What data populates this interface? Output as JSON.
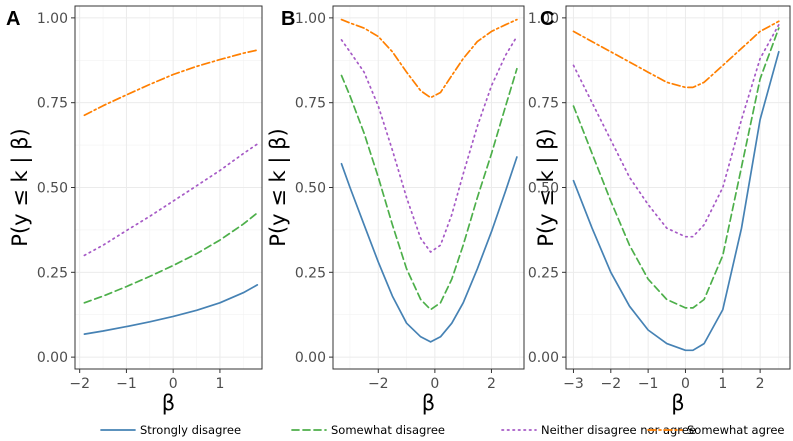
{
  "legend": [
    {
      "label": "Strongly disagree",
      "color": "#4682B4",
      "dash": "solid"
    },
    {
      "label": "Somewhat disagree",
      "color": "#4DAF4A",
      "dash": "dashed"
    },
    {
      "label": "Neither disagree nor agree",
      "color": "#A65AC6",
      "dash": "dotted"
    },
    {
      "label": "Somewhat agree",
      "color": "#FF7F00",
      "dash": "dashdot"
    }
  ],
  "chart_data": [
    {
      "type": "line",
      "panel": "A",
      "xlabel": "β",
      "ylabel": "P(y ≤ k | β)",
      "xlim": [
        -2.1,
        1.9
      ],
      "ylim": [
        -0.035,
        1.035
      ],
      "xticks": [
        "−2",
        "−1",
        "0",
        "1"
      ],
      "yticks": [
        "0.00",
        "0.25",
        "0.50",
        "0.75",
        "1.00"
      ],
      "grid": true,
      "x": [
        -1.9,
        -1.5,
        -1.0,
        -0.5,
        0.0,
        0.5,
        1.0,
        1.5,
        1.8
      ],
      "series": [
        {
          "name": "Strongly disagree",
          "values": [
            0.068,
            0.077,
            0.09,
            0.104,
            0.12,
            0.138,
            0.16,
            0.19,
            0.213
          ]
        },
        {
          "name": "Somewhat disagree",
          "values": [
            0.16,
            0.18,
            0.208,
            0.238,
            0.27,
            0.305,
            0.345,
            0.392,
            0.425
          ]
        },
        {
          "name": "Neither disagree nor agree",
          "values": [
            0.3,
            0.33,
            0.373,
            0.415,
            0.46,
            0.505,
            0.55,
            0.6,
            0.628
          ]
        },
        {
          "name": "Somewhat agree",
          "values": [
            0.713,
            0.741,
            0.773,
            0.804,
            0.833,
            0.857,
            0.877,
            0.896,
            0.905
          ]
        }
      ]
    },
    {
      "type": "line",
      "panel": "B",
      "xlabel": "β",
      "ylabel": "P(y ≤ k | β)",
      "xlim": [
        -3.6,
        3.15
      ],
      "ylim": [
        -0.035,
        1.035
      ],
      "xticks": [
        "−2",
        "0",
        "2"
      ],
      "yticks": [
        "0.00",
        "0.25",
        "0.50",
        "0.75",
        "1.00"
      ],
      "grid": true,
      "x": [
        -3.3,
        -3.0,
        -2.5,
        -2.0,
        -1.5,
        -1.0,
        -0.5,
        -0.15,
        0.2,
        0.6,
        1.0,
        1.5,
        2.0,
        2.5,
        2.9
      ],
      "series": [
        {
          "name": "Strongly disagree",
          "values": [
            0.57,
            0.5,
            0.39,
            0.28,
            0.18,
            0.1,
            0.06,
            0.045,
            0.06,
            0.1,
            0.16,
            0.26,
            0.37,
            0.49,
            0.59
          ]
        },
        {
          "name": "Somewhat disagree",
          "values": [
            0.83,
            0.77,
            0.66,
            0.53,
            0.39,
            0.26,
            0.17,
            0.14,
            0.16,
            0.23,
            0.33,
            0.47,
            0.6,
            0.74,
            0.85
          ]
        },
        {
          "name": "Neither disagree nor agree",
          "values": [
            0.935,
            0.9,
            0.84,
            0.74,
            0.61,
            0.47,
            0.35,
            0.31,
            0.33,
            0.42,
            0.54,
            0.68,
            0.8,
            0.89,
            0.945
          ]
        },
        {
          "name": "Somewhat agree",
          "values": [
            0.995,
            0.985,
            0.97,
            0.945,
            0.9,
            0.84,
            0.785,
            0.765,
            0.78,
            0.83,
            0.88,
            0.93,
            0.96,
            0.98,
            0.995
          ]
        }
      ]
    },
    {
      "type": "line",
      "panel": "C",
      "xlabel": "β",
      "ylabel": "P(y ≤ k | β)",
      "xlim": [
        -3.2,
        2.8
      ],
      "ylim": [
        -0.035,
        1.035
      ],
      "xticks": [
        "−3",
        "−2",
        "−1",
        "0",
        "1",
        "2"
      ],
      "yticks": [
        "0.00",
        "0.25",
        "0.50",
        "0.75",
        "1.00"
      ],
      "grid": true,
      "x": [
        -3.0,
        -2.5,
        -2.0,
        -1.5,
        -1.0,
        -0.5,
        0.0,
        0.2,
        0.5,
        1.0,
        1.5,
        2.0,
        2.5
      ],
      "series": [
        {
          "name": "Strongly disagree",
          "values": [
            0.52,
            0.38,
            0.25,
            0.15,
            0.08,
            0.04,
            0.02,
            0.02,
            0.04,
            0.14,
            0.38,
            0.7,
            0.9
          ]
        },
        {
          "name": "Somewhat disagree",
          "values": [
            0.74,
            0.6,
            0.46,
            0.33,
            0.23,
            0.17,
            0.145,
            0.145,
            0.17,
            0.3,
            0.56,
            0.82,
            0.97
          ]
        },
        {
          "name": "Neither disagree nor agree",
          "values": [
            0.86,
            0.75,
            0.64,
            0.53,
            0.45,
            0.38,
            0.355,
            0.355,
            0.39,
            0.5,
            0.7,
            0.88,
            0.98
          ]
        },
        {
          "name": "Somewhat agree",
          "values": [
            0.96,
            0.93,
            0.9,
            0.87,
            0.84,
            0.81,
            0.795,
            0.795,
            0.81,
            0.86,
            0.91,
            0.96,
            0.99
          ]
        }
      ]
    }
  ]
}
